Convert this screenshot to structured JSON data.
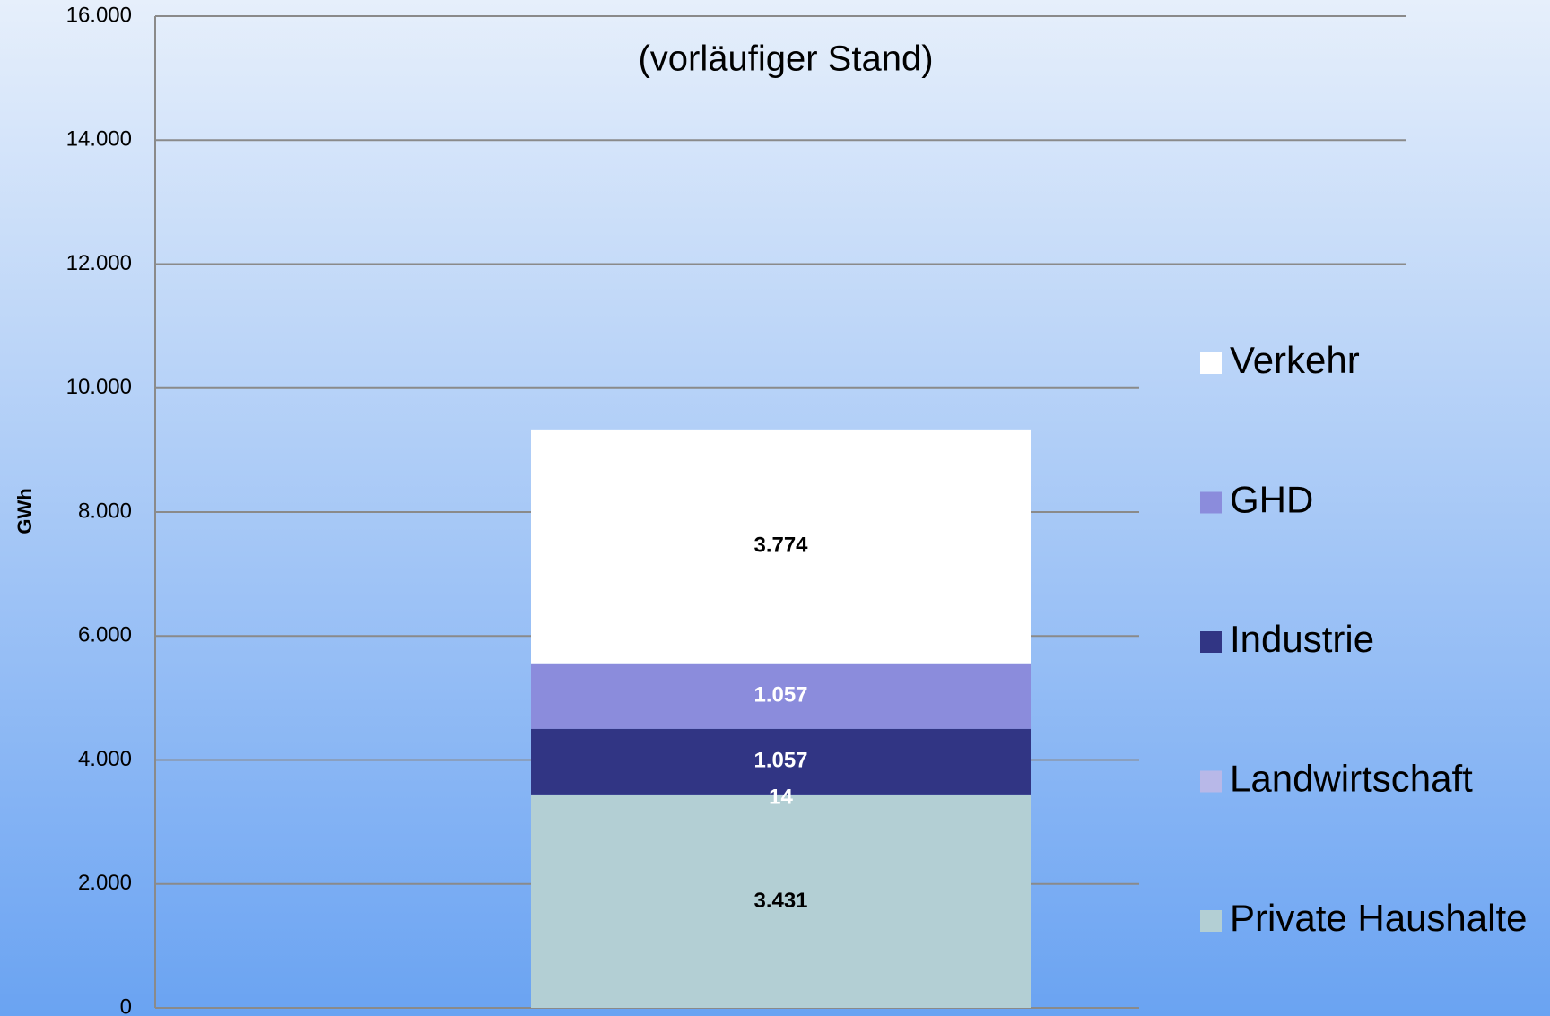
{
  "chart_data": {
    "type": "stacked_bar",
    "subtitle": "(vorläufiger Stand)",
    "y_label": "GWh",
    "categories": [
      null
    ],
    "series": [
      {
        "name": "Private Haushalte",
        "color": "#b3cfd4",
        "label_color": "#000000",
        "values": [
          3431
        ],
        "value_labels": [
          "3.431"
        ]
      },
      {
        "name": "Landwirtschaft",
        "color": "#b8b8e8",
        "label_color": "#ffffff",
        "values": [
          14
        ],
        "value_labels": [
          "14"
        ]
      },
      {
        "name": "Industrie",
        "color": "#313584",
        "label_color": "#ffffff",
        "values": [
          1057
        ],
        "value_labels": [
          "1.057"
        ]
      },
      {
        "name": "GHD",
        "color": "#8b8cdc",
        "label_color": "#ffffff",
        "values": [
          1057
        ],
        "value_labels": [
          "1.057"
        ]
      },
      {
        "name": "Verkehr",
        "color": "#ffffff",
        "label_color": "#000000",
        "values": [
          3774
        ],
        "value_labels": [
          "3.774"
        ]
      }
    ],
    "ylim": [
      0,
      16000
    ],
    "yticks": [
      0,
      {
        "value": 2000,
        "label": "2.000"
      },
      {
        "value": 4000,
        "label": "4.000"
      },
      {
        "value": 6000,
        "label": "6.000"
      },
      {
        "value": 8000,
        "label": "8.000"
      },
      {
        "value": 10000,
        "label": "10.000"
      },
      {
        "value": 12000,
        "label": "12.000"
      },
      {
        "value": 14000,
        "label": "14.000"
      },
      {
        "value": 16000,
        "label": "16.000"
      }
    ],
    "grid": true,
    "legend": "right"
  }
}
